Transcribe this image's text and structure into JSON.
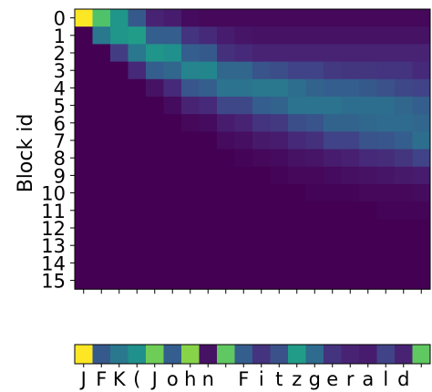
{
  "chart_data": {
    "type": "heatmap",
    "ylabel": "Block id",
    "row_labels": [
      "0",
      "1",
      "2",
      "3",
      "4",
      "5",
      "6",
      "7",
      "8",
      "9",
      "10",
      "11",
      "12",
      "13",
      "14",
      "15"
    ],
    "colormap": "viridis",
    "matrix": [
      [
        1.0,
        0.72,
        0.52,
        0.28,
        0.1,
        0.08,
        0.03,
        0.02,
        0.02,
        0.02,
        0.02,
        0.02,
        0.02,
        0.02,
        0.02,
        0.02,
        0.02,
        0.02,
        0.02,
        0.02
      ],
      [
        0.0,
        0.4,
        0.52,
        0.55,
        0.3,
        0.3,
        0.15,
        0.12,
        0.08,
        0.06,
        0.05,
        0.05,
        0.05,
        0.05,
        0.05,
        0.05,
        0.05,
        0.05,
        0.05,
        0.05
      ],
      [
        0.0,
        0.0,
        0.18,
        0.4,
        0.52,
        0.5,
        0.3,
        0.28,
        0.14,
        0.12,
        0.1,
        0.1,
        0.1,
        0.1,
        0.1,
        0.1,
        0.1,
        0.1,
        0.1,
        0.1
      ],
      [
        0.0,
        0.0,
        0.0,
        0.12,
        0.3,
        0.33,
        0.45,
        0.46,
        0.33,
        0.33,
        0.26,
        0.24,
        0.2,
        0.2,
        0.17,
        0.16,
        0.16,
        0.15,
        0.15,
        0.12
      ],
      [
        0.0,
        0.0,
        0.0,
        0.0,
        0.05,
        0.12,
        0.27,
        0.3,
        0.38,
        0.38,
        0.4,
        0.4,
        0.36,
        0.32,
        0.3,
        0.3,
        0.28,
        0.25,
        0.22,
        0.2
      ],
      [
        0.0,
        0.0,
        0.0,
        0.0,
        0.0,
        0.03,
        0.1,
        0.12,
        0.22,
        0.22,
        0.3,
        0.32,
        0.38,
        0.38,
        0.38,
        0.36,
        0.36,
        0.36,
        0.33,
        0.3
      ],
      [
        0.0,
        0.0,
        0.0,
        0.0,
        0.0,
        0.0,
        0.02,
        0.03,
        0.08,
        0.1,
        0.15,
        0.17,
        0.24,
        0.26,
        0.32,
        0.32,
        0.34,
        0.35,
        0.35,
        0.33
      ],
      [
        0.0,
        0.0,
        0.0,
        0.0,
        0.0,
        0.0,
        0.0,
        0.0,
        0.03,
        0.04,
        0.07,
        0.08,
        0.12,
        0.14,
        0.2,
        0.2,
        0.26,
        0.27,
        0.3,
        0.36
      ],
      [
        0.0,
        0.0,
        0.0,
        0.0,
        0.0,
        0.0,
        0.0,
        0.0,
        0.0,
        0.01,
        0.02,
        0.03,
        0.05,
        0.06,
        0.08,
        0.09,
        0.12,
        0.13,
        0.16,
        0.2
      ],
      [
        0.0,
        0.0,
        0.0,
        0.0,
        0.0,
        0.0,
        0.0,
        0.0,
        0.0,
        0.0,
        0.0,
        0.01,
        0.02,
        0.02,
        0.03,
        0.04,
        0.05,
        0.06,
        0.07,
        0.08
      ],
      [
        0.0,
        0.0,
        0.0,
        0.0,
        0.0,
        0.0,
        0.0,
        0.0,
        0.0,
        0.0,
        0.0,
        0.0,
        0.0,
        0.01,
        0.01,
        0.01,
        0.02,
        0.02,
        0.02,
        0.03
      ],
      [
        0.0,
        0.0,
        0.0,
        0.0,
        0.0,
        0.0,
        0.0,
        0.0,
        0.0,
        0.0,
        0.0,
        0.0,
        0.0,
        0.0,
        0.0,
        0.0,
        0.0,
        0.01,
        0.01,
        0.01
      ],
      [
        0.0,
        0.0,
        0.0,
        0.0,
        0.0,
        0.0,
        0.0,
        0.0,
        0.0,
        0.0,
        0.0,
        0.0,
        0.0,
        0.0,
        0.0,
        0.0,
        0.0,
        0.0,
        0.0,
        0.0
      ],
      [
        0.0,
        0.0,
        0.0,
        0.0,
        0.0,
        0.0,
        0.0,
        0.0,
        0.0,
        0.0,
        0.0,
        0.0,
        0.0,
        0.0,
        0.0,
        0.0,
        0.0,
        0.0,
        0.0,
        0.0
      ],
      [
        0.0,
        0.0,
        0.0,
        0.0,
        0.0,
        0.0,
        0.0,
        0.0,
        0.0,
        0.0,
        0.0,
        0.0,
        0.0,
        0.0,
        0.0,
        0.0,
        0.0,
        0.0,
        0.0,
        0.0
      ],
      [
        0.0,
        0.0,
        0.0,
        0.0,
        0.0,
        0.0,
        0.0,
        0.0,
        0.0,
        0.0,
        0.0,
        0.0,
        0.0,
        0.0,
        0.0,
        0.0,
        0.0,
        0.0,
        0.0,
        0.0
      ]
    ],
    "token_strip": {
      "tokens": [
        "J",
        "F",
        "K",
        "(",
        "J",
        "o",
        "h",
        "n",
        " ",
        "F",
        "i",
        "t",
        "z",
        "g",
        "e",
        "r",
        "a",
        "l",
        "d",
        ""
      ],
      "values": [
        1.0,
        0.28,
        0.4,
        0.5,
        0.78,
        0.3,
        0.82,
        0.05,
        0.75,
        0.3,
        0.15,
        0.25,
        0.55,
        0.35,
        0.15,
        0.1,
        0.08,
        0.2,
        0.1,
        0.75
      ]
    }
  }
}
